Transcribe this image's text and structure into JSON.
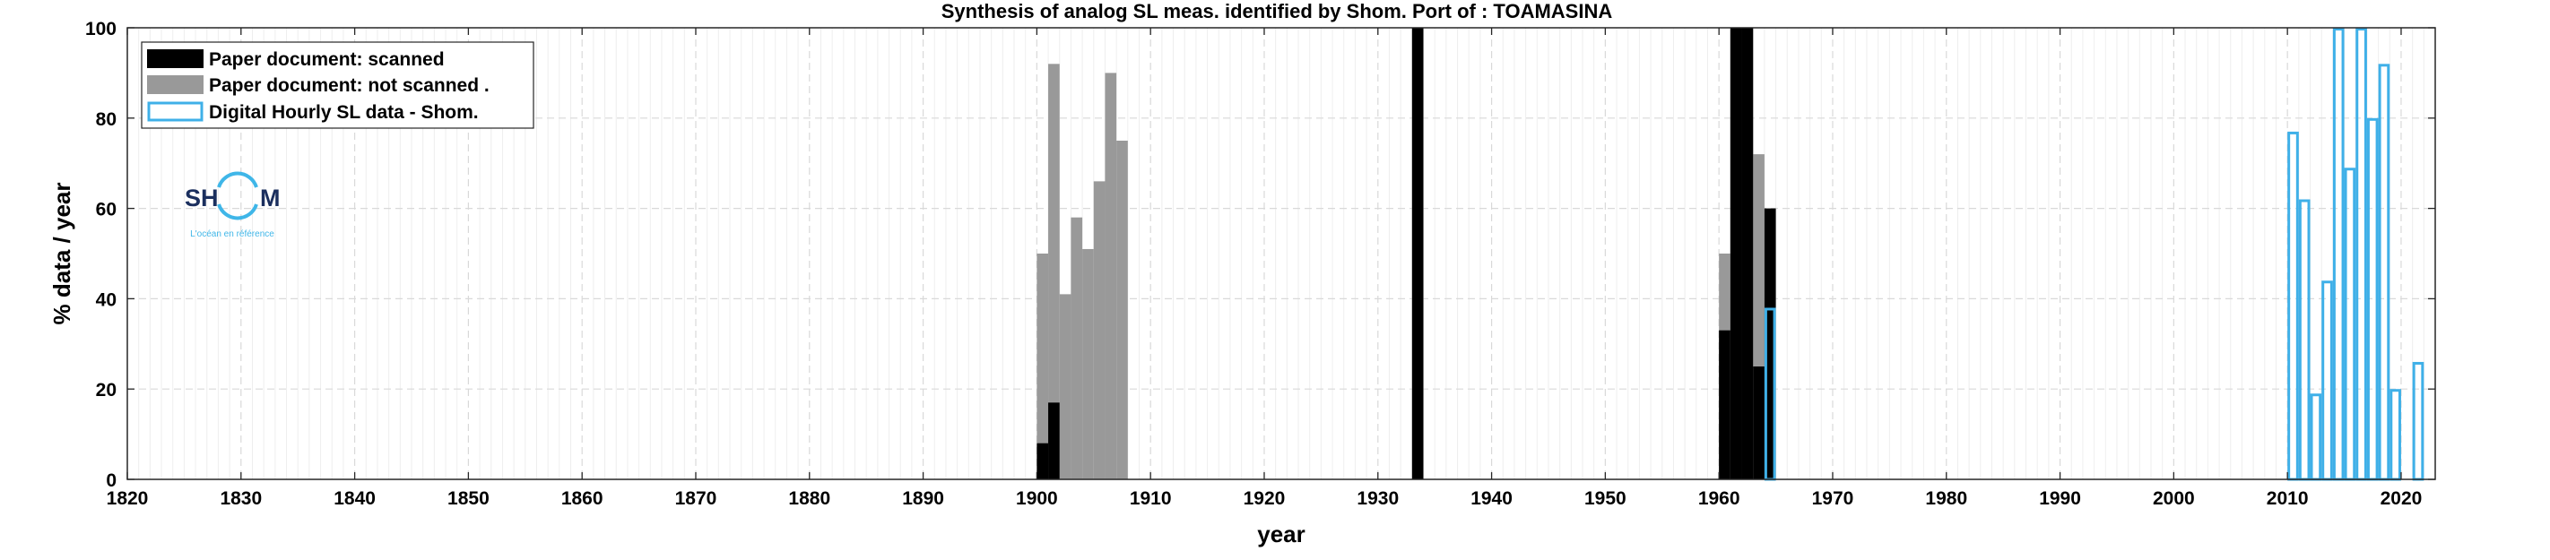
{
  "chart_data": {
    "type": "bar",
    "title": "Synthesis of analog SL meas. identified by Shom. Port of : TOAMASINA",
    "xlabel": "year",
    "ylabel": "% data / year",
    "xlim": [
      1820,
      2023
    ],
    "ylim": [
      0,
      100
    ],
    "xticks": [
      1820,
      1830,
      1840,
      1850,
      1860,
      1870,
      1880,
      1890,
      1900,
      1910,
      1920,
      1930,
      1940,
      1950,
      1960,
      1970,
      1980,
      1990,
      2000,
      2010,
      2020
    ],
    "yticks": [
      0,
      20,
      40,
      60,
      80,
      100
    ],
    "grid": true,
    "legend_position": "top-left",
    "colors": {
      "scanned": "#000000",
      "not_scanned": "#999999",
      "digital": "#3fb0e8",
      "grid": "#d9d9d9",
      "axis": "#262626"
    },
    "series": [
      {
        "name": "Paper document: scanned",
        "style": "filled",
        "x": [
          1900,
          1901,
          1933,
          1960,
          1961,
          1962,
          1963,
          1964
        ],
        "values": [
          8,
          17,
          100,
          33,
          100,
          100,
          25,
          60
        ]
      },
      {
        "name": "Paper document: not scanned   .",
        "style": "filled",
        "x": [
          1900,
          1901,
          1902,
          1903,
          1904,
          1905,
          1906,
          1907,
          1960,
          1961,
          1962,
          1963
        ],
        "values": [
          50,
          92,
          41,
          58,
          51,
          66,
          90,
          75,
          50,
          100,
          100,
          72
        ]
      },
      {
        "name": "Digital Hourly SL data - Shom.",
        "style": "outline",
        "x": [
          1964,
          2010,
          2011,
          2012,
          2013,
          2014,
          2015,
          2016,
          2017,
          2018,
          2019,
          2020,
          2021
        ],
        "values": [
          38,
          77,
          62,
          19,
          44,
          100,
          69,
          100,
          80,
          92,
          20,
          0,
          26
        ]
      }
    ]
  },
  "logo": {
    "left_text": "SH",
    "right_text": "M",
    "tagline": "L'océan en référence"
  }
}
